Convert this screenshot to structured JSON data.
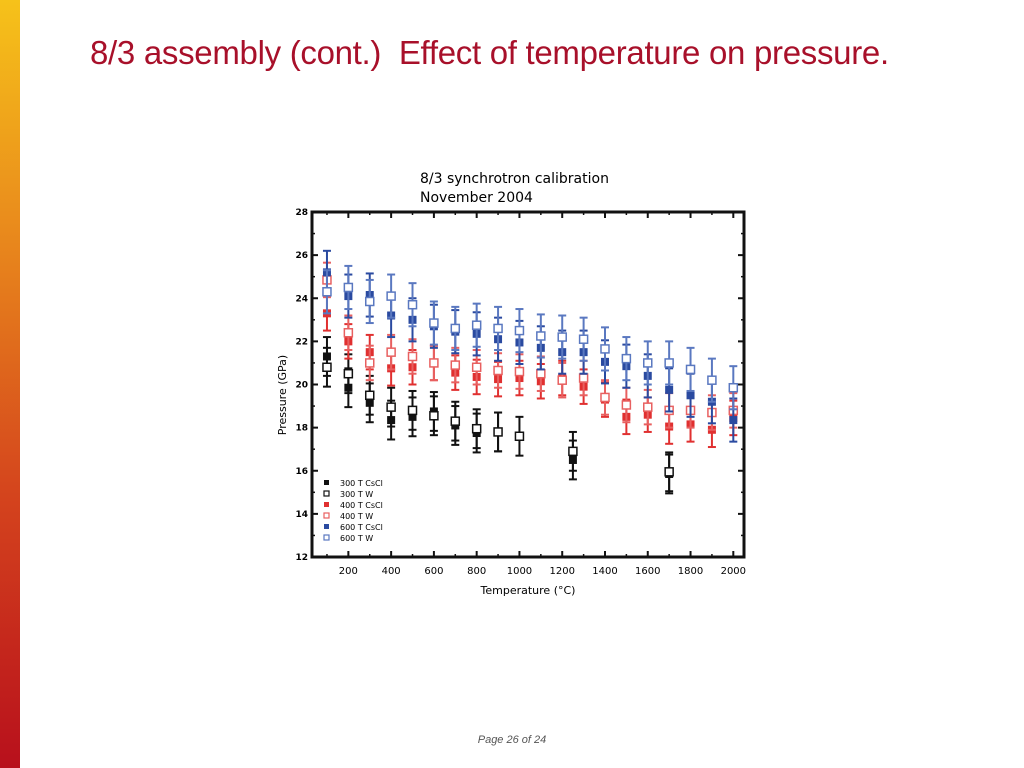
{
  "slide": {
    "title": "8/3 assembly (cont.)  Effect of temperature on pressure.",
    "page_label": "Page 26 of 24",
    "accent_color": "#a8102a"
  },
  "chart_data": {
    "type": "scatter",
    "title": "8/3 synchrotron calibration",
    "subtitle": "November 2004",
    "xlabel": "Temperature (°C)",
    "ylabel": "Pressure (GPa)",
    "xlim": [
      30,
      2050
    ],
    "ylim": [
      12,
      28
    ],
    "xticks": [
      200,
      400,
      600,
      800,
      1000,
      1200,
      1400,
      1600,
      1800,
      2000
    ],
    "yticks": [
      12,
      14,
      16,
      18,
      20,
      22,
      24,
      26,
      28
    ],
    "grid": false,
    "legend_position": "bottom-left",
    "error_bars": true,
    "series": [
      {
        "name": "300 T CsCl",
        "color": "#111111",
        "marker": "filled-square",
        "yerr": 0.9,
        "x": [
          100,
          200,
          300,
          400,
          500,
          600,
          700,
          800,
          900,
          1250,
          1700
        ],
        "y": [
          21.3,
          19.85,
          19.15,
          18.35,
          18.5,
          18.75,
          18.1,
          17.75,
          17.8,
          16.5,
          15.85
        ]
      },
      {
        "name": "300 T W",
        "color": "#111111",
        "marker": "open-square",
        "yerr": 0.9,
        "x": [
          100,
          200,
          300,
          400,
          500,
          600,
          700,
          800,
          900,
          1000,
          1250,
          1700
        ],
        "y": [
          20.8,
          20.5,
          19.5,
          18.95,
          18.8,
          18.55,
          18.3,
          17.95,
          17.8,
          17.6,
          16.9,
          15.95
        ]
      },
      {
        "name": "400 T CsCl",
        "color": "#e03030",
        "marker": "filled-square",
        "yerr": 0.8,
        "x": [
          100,
          200,
          300,
          400,
          500,
          600,
          700,
          800,
          900,
          1000,
          1100,
          1200,
          1300,
          1400,
          1500,
          1600,
          1700,
          1800,
          1900,
          2000
        ],
        "y": [
          23.3,
          22.0,
          21.5,
          20.75,
          20.8,
          21.0,
          20.55,
          20.35,
          20.25,
          20.3,
          20.15,
          20.3,
          19.9,
          19.3,
          18.5,
          18.6,
          18.05,
          18.15,
          17.9,
          18.45
        ]
      },
      {
        "name": "400 T W",
        "color": "#e86060",
        "marker": "open-square",
        "yerr": 0.8,
        "x": [
          100,
          200,
          300,
          400,
          500,
          600,
          700,
          800,
          900,
          1000,
          1100,
          1200,
          1300,
          1400,
          1500,
          1600,
          1700,
          1800,
          1900,
          2000
        ],
        "y": [
          24.85,
          22.4,
          21.0,
          21.5,
          21.3,
          21.0,
          20.9,
          20.8,
          20.65,
          20.6,
          20.5,
          20.2,
          20.3,
          19.4,
          19.05,
          18.95,
          18.8,
          18.8,
          18.7,
          18.8
        ]
      },
      {
        "name": "600 T CsCl",
        "color": "#2a4aa0",
        "marker": "filled-square",
        "yerr": 1.0,
        "x": [
          100,
          200,
          300,
          400,
          500,
          600,
          700,
          800,
          900,
          1000,
          1100,
          1200,
          1300,
          1400,
          1500,
          1600,
          1700,
          1800,
          1900,
          2000
        ],
        "y": [
          25.2,
          24.1,
          24.15,
          23.2,
          23.0,
          22.7,
          22.45,
          22.35,
          22.1,
          21.95,
          21.7,
          21.5,
          21.5,
          21.05,
          20.85,
          20.4,
          19.75,
          19.5,
          19.2,
          18.35
        ]
      },
      {
        "name": "600 T W",
        "color": "#5a78c0",
        "marker": "open-square",
        "yerr": 1.0,
        "x": [
          100,
          200,
          300,
          400,
          500,
          600,
          700,
          800,
          900,
          1000,
          1100,
          1200,
          1300,
          1400,
          1500,
          1600,
          1700,
          1800,
          1900,
          2000
        ],
        "y": [
          24.3,
          24.5,
          23.85,
          24.1,
          23.7,
          22.85,
          22.6,
          22.75,
          22.6,
          22.5,
          22.25,
          22.2,
          22.1,
          21.65,
          21.2,
          21.0,
          21.0,
          20.7,
          20.2,
          19.85
        ]
      }
    ]
  }
}
